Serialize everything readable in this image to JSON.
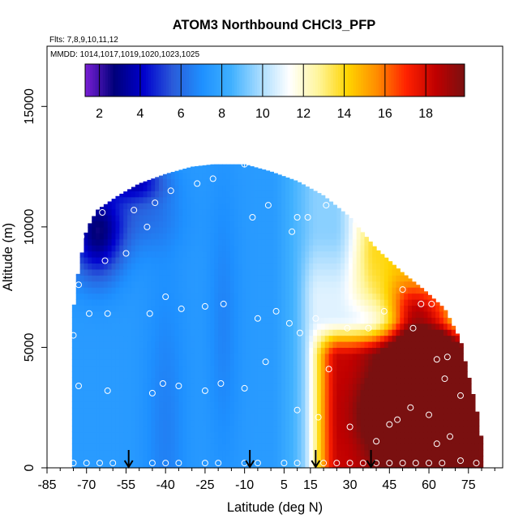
{
  "chart_data": {
    "type": "heatmap",
    "title": "ATOM3 Northbound CHCl3_PFP",
    "subtitle_flights": "Flts: 7,8,9,10,11,12",
    "subtitle_dates": "MMDD: 1014,1017,1019,1020,1023,1025",
    "xlabel": "Latitude (deg N)",
    "ylabel": "Altitude (m)",
    "xlim": [
      -85,
      88
    ],
    "ylim": [
      0,
      17500
    ],
    "x_ticks": [
      -85,
      -70,
      -55,
      -40,
      -25,
      -10,
      5,
      15,
      30,
      45,
      60,
      75
    ],
    "x_minor_step": 5,
    "y_ticks": [
      0,
      5000,
      10000,
      15000
    ],
    "colorbar": {
      "range": [
        1.3,
        19.9
      ],
      "ticks": [
        2,
        4,
        6,
        8,
        10,
        12,
        14,
        16,
        18
      ],
      "colors": [
        "#7a1fd6",
        "#00007a",
        "#0000cd",
        "#2a5bd9",
        "#1e90ff",
        "#3fb0ff",
        "#a8dcff",
        "#ffffff",
        "#fff59a",
        "#ffd400",
        "#ff8c00",
        "#ff2200",
        "#c00000",
        "#7a1010"
      ]
    },
    "grid": false,
    "arrows_lat": [
      -54,
      -8,
      17,
      38
    ],
    "samples": [
      [
        -75,
        5500
      ],
      [
        -73,
        7600
      ],
      [
        -72,
        9600
      ],
      [
        -69,
        6400
      ],
      [
        -64,
        10600
      ],
      [
        -63,
        8600
      ],
      [
        -62,
        6400
      ],
      [
        -55,
        8900
      ],
      [
        -52,
        10700
      ],
      [
        -47,
        10000
      ],
      [
        -46,
        6400
      ],
      [
        -44,
        11000
      ],
      [
        -40,
        7100
      ],
      [
        -38,
        11500
      ],
      [
        -34,
        6600
      ],
      [
        -28,
        11800
      ],
      [
        -25,
        6700
      ],
      [
        -22,
        12000
      ],
      [
        -18,
        6800
      ],
      [
        -10,
        12600
      ],
      [
        -7,
        10400
      ],
      [
        -5,
        6200
      ],
      [
        -2,
        4400
      ],
      [
        -1,
        10900
      ],
      [
        2,
        6500
      ],
      [
        7,
        6000
      ],
      [
        8,
        9800
      ],
      [
        10,
        10400
      ],
      [
        11,
        5600
      ],
      [
        14,
        10400
      ],
      [
        17,
        6200
      ],
      [
        21,
        10900
      ],
      [
        22,
        4100
      ],
      [
        29,
        5800
      ],
      [
        30,
        11600
      ],
      [
        37,
        5800
      ],
      [
        43,
        6500
      ],
      [
        46,
        8800
      ],
      [
        50,
        7400
      ],
      [
        54,
        5800
      ],
      [
        57,
        6800
      ],
      [
        59,
        7900
      ],
      [
        61,
        6800
      ],
      [
        63,
        4500
      ],
      [
        66,
        3700
      ],
      [
        67,
        4600
      ],
      [
        70,
        6600
      ],
      [
        72,
        3000
      ],
      [
        -73,
        3400
      ],
      [
        -62,
        3200
      ],
      [
        -45,
        3100
      ],
      [
        -41,
        3500
      ],
      [
        -35,
        3400
      ],
      [
        -25,
        3200
      ],
      [
        -19,
        3500
      ],
      [
        -10,
        3300
      ],
      [
        10,
        2400
      ],
      [
        18,
        2100
      ],
      [
        30,
        1700
      ],
      [
        40,
        1100
      ],
      [
        45,
        1800
      ],
      [
        48,
        2000
      ],
      [
        53,
        2500
      ],
      [
        60,
        2200
      ],
      [
        63,
        1000
      ],
      [
        68,
        1300
      ],
      [
        72,
        300
      ],
      [
        78,
        200
      ],
      [
        -75,
        200
      ],
      [
        -70,
        200
      ],
      [
        -65,
        200
      ],
      [
        -60,
        200
      ],
      [
        -45,
        200
      ],
      [
        -40,
        200
      ],
      [
        -35,
        200
      ],
      [
        -25,
        200
      ],
      [
        -20,
        200
      ],
      [
        -10,
        200
      ],
      [
        -5,
        200
      ],
      [
        5,
        200
      ],
      [
        10,
        200
      ],
      [
        20,
        200
      ],
      [
        25,
        200
      ],
      [
        30,
        200
      ],
      [
        35,
        200
      ],
      [
        40,
        200
      ],
      [
        45,
        200
      ],
      [
        50,
        200
      ],
      [
        55,
        200
      ],
      [
        60,
        200
      ],
      [
        65,
        200
      ]
    ]
  }
}
